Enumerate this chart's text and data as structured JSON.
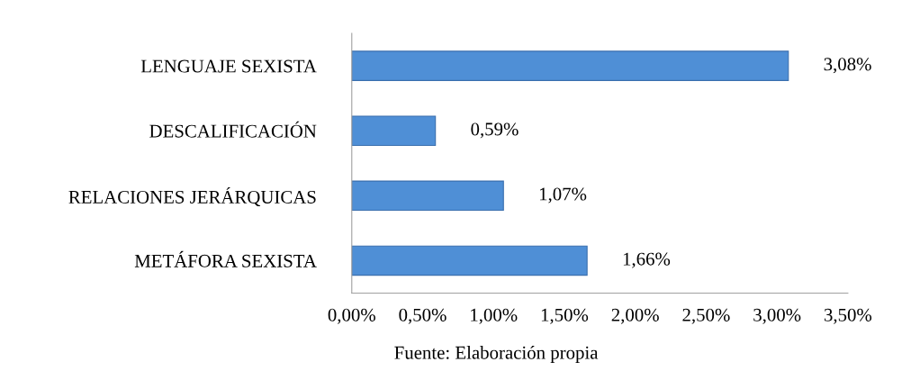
{
  "chart_data": {
    "type": "bar",
    "orientation": "horizontal",
    "categories": [
      "LENGUAJE SEXISTA",
      "DESCALIFICACIÓN",
      "RELACIONES JERÁRQUICAS",
      "METÁFORA SEXISTA"
    ],
    "values": [
      3.08,
      0.59,
      1.07,
      1.66
    ],
    "value_labels": [
      "3,08%",
      "0,59%",
      "1,07%",
      "1,66%"
    ],
    "color": "#4f8fd6",
    "xlim": [
      0,
      3.5
    ],
    "xticks": [
      {
        "value": 0,
        "label": "0,00%"
      },
      {
        "value": 0.5,
        "label": "0,50%"
      },
      {
        "value": 1,
        "label": "1,00%"
      },
      {
        "value": 1.5,
        "label": "1,50%"
      },
      {
        "value": 2,
        "label": "2,00%"
      },
      {
        "value": 2.5,
        "label": "2,50%"
      },
      {
        "value": 3,
        "label": "3,00%"
      },
      {
        "value": 3.5,
        "label": "3,50%"
      }
    ],
    "grid": false,
    "annotations": [
      "Fuente: Elaboración propia"
    ]
  }
}
